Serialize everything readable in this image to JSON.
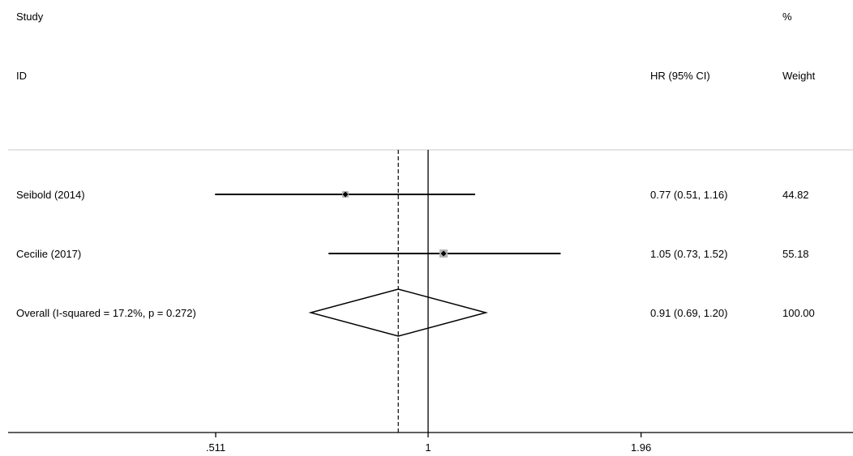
{
  "chart_data": {
    "type": "forest",
    "headers": {
      "study_line1": "Study",
      "study_line2": "ID",
      "effect": "HR (95% CI)",
      "weight_line1": "%",
      "weight_line2": "Weight"
    },
    "scale": "log",
    "xlim": [
      0.35,
      2.8
    ],
    "xticks": [
      {
        "value": 0.511,
        "label": ".511"
      },
      {
        "value": 1,
        "label": "1"
      },
      {
        "value": 1.96,
        "label": "1.96"
      }
    ],
    "null_line": 1,
    "pooled_line": 0.91,
    "studies": [
      {
        "label": "Seibold (2014)",
        "hr": 0.77,
        "lo": 0.51,
        "hi": 1.16,
        "ci_text": "0.77 (0.51, 1.16)",
        "weight": 44.82,
        "weight_text": "44.82"
      },
      {
        "label": "Cecilie (2017)",
        "hr": 1.05,
        "lo": 0.73,
        "hi": 1.52,
        "ci_text": "1.05 (0.73, 1.52)",
        "weight": 55.18,
        "weight_text": "55.18"
      }
    ],
    "overall": {
      "label": "Overall  (I-squared = 17.2%, p = 0.272)",
      "hr": 0.91,
      "lo": 0.69,
      "hi": 1.2,
      "ci_text": "0.91 (0.69, 1.20)",
      "weight_text": "100.00"
    }
  }
}
